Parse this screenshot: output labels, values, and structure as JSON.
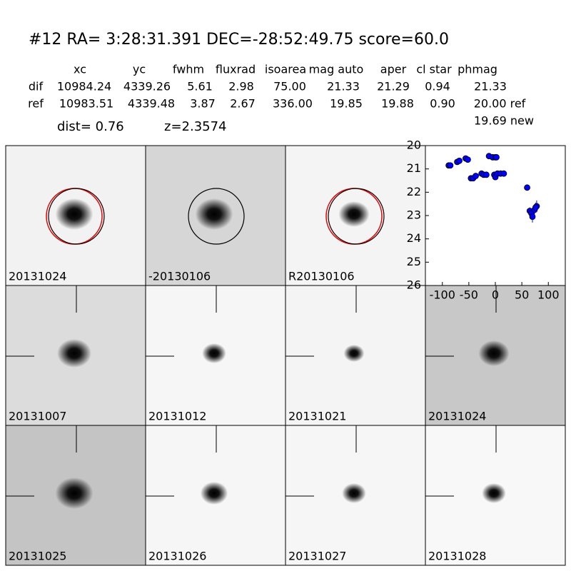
{
  "header": {
    "title": "#12   RA= 3:28:31.391 DEC=-28:52:49.75       score=60.0",
    "columns": [
      "xc",
      "yc",
      "fwhm",
      "fluxrad",
      "isoarea",
      "mag auto",
      "aper",
      "cl star",
      "phmag"
    ],
    "rows": [
      [
        "dif",
        "10984.24",
        "4339.26",
        "5.61",
        "2.98",
        "75.00",
        "21.33",
        "21.29",
        "0.94",
        "21.33"
      ],
      [
        "ref",
        "10983.51",
        "4339.48",
        "3.87",
        "2.67",
        "336.00",
        "19.85",
        "19.88",
        "0.90",
        "20.00 ref"
      ]
    ],
    "note": "19.69 new",
    "dist": "dist=  0.76",
    "redshift": "z=2.3574"
  },
  "stamps": [
    {
      "label": "20131024"
    },
    {
      "label": "-20130106"
    },
    {
      "label": "R20130106"
    },
    {
      "label": "20131007"
    },
    {
      "label": "20131012"
    },
    {
      "label": "20131021"
    },
    {
      "label": "20131024",
      "label_color": "#ff0000"
    },
    {
      "label": "20131025"
    },
    {
      "label": "20131026"
    },
    {
      "label": "20131027"
    },
    {
      "label": "20131028"
    }
  ],
  "chart_data": {
    "type": "scatter",
    "x": [
      -88,
      -85,
      -72,
      -68,
      -56,
      -52,
      -46,
      -42,
      -37,
      -26,
      -22,
      -17,
      -12,
      -5,
      0,
      2,
      -2,
      0,
      4,
      10,
      16,
      60,
      65,
      68,
      70,
      74,
      78,
      76
    ],
    "values": [
      20.85,
      20.85,
      20.7,
      20.65,
      20.55,
      20.6,
      21.4,
      21.4,
      21.3,
      21.2,
      21.25,
      21.25,
      20.45,
      20.5,
      20.5,
      20.5,
      21.25,
      21.35,
      21.2,
      21.2,
      21.2,
      21.8,
      22.8,
      22.9,
      23.05,
      22.75,
      22.6,
      22.65
    ],
    "errors": [
      null,
      null,
      null,
      null,
      null,
      null,
      null,
      null,
      null,
      null,
      null,
      null,
      null,
      null,
      null,
      null,
      null,
      null,
      null,
      null,
      null,
      null,
      0.15,
      0.2,
      0.25,
      0.2,
      0.25,
      0.2
    ],
    "color": "#0000ff",
    "xlim": [
      -132,
      132
    ],
    "ylim": [
      20,
      26
    ],
    "y_inverted": true,
    "xticks": [
      -100,
      -50,
      0,
      50,
      100
    ],
    "yticks": [
      20,
      21,
      22,
      23,
      24,
      25,
      26
    ]
  }
}
